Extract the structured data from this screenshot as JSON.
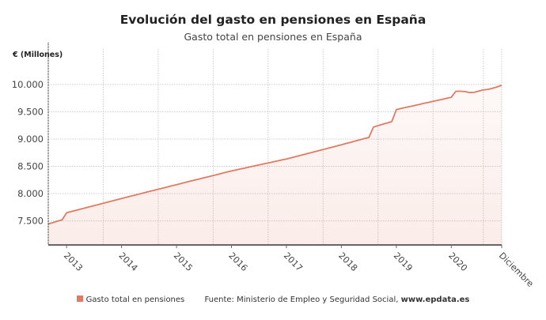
{
  "title": "Evolución del gasto en pensiones en España",
  "subtitle": "Gasto total en pensiones en España",
  "legend": {
    "label": "Gasto total en pensiones",
    "color": "#e07a62"
  },
  "source": {
    "prefix": "Fuente: Ministerio de Empleo y Seguridad Social, ",
    "link": "www.epdata.es"
  },
  "chart_data": {
    "type": "area",
    "title": "Evolución del gasto en pensiones en España",
    "subtitle": "Gasto total en pensiones en España",
    "ylabel": "€ (Millones)",
    "xlabel": "",
    "ylim": [
      7060,
      10360
    ],
    "yticks": [
      7500,
      8000,
      8500,
      9000,
      9500,
      10000
    ],
    "ytick_labels": [
      "7.500",
      "8.000",
      "8.500",
      "9.000",
      "9.500",
      "10.000"
    ],
    "xticks": [
      "2013-01",
      "2014-01",
      "2015-01",
      "2016-01",
      "2017-01",
      "2018-01",
      "2019-01",
      "2020-01",
      "2020-12"
    ],
    "xtick_labels": [
      "2013",
      "2014",
      "2015",
      "2016",
      "2017",
      "2018",
      "2019",
      "2020",
      "Diciembre"
    ],
    "grid": true,
    "legend_position": "bottom",
    "series": [
      {
        "name": "Gasto total en pensiones",
        "color": "#e07a62",
        "x": [
          "2012-09",
          "2012-10",
          "2012-11",
          "2012-12",
          "2013-01",
          "2013-02",
          "2013-03",
          "2013-04",
          "2013-05",
          "2013-06",
          "2013-07",
          "2013-08",
          "2013-09",
          "2013-10",
          "2013-11",
          "2013-12",
          "2014-01",
          "2014-02",
          "2014-03",
          "2014-04",
          "2014-05",
          "2014-06",
          "2014-07",
          "2014-08",
          "2014-09",
          "2014-10",
          "2014-11",
          "2014-12",
          "2015-01",
          "2015-02",
          "2015-03",
          "2015-04",
          "2015-05",
          "2015-06",
          "2015-07",
          "2015-08",
          "2015-09",
          "2015-10",
          "2015-11",
          "2015-12",
          "2016-01",
          "2016-02",
          "2016-03",
          "2016-04",
          "2016-05",
          "2016-06",
          "2016-07",
          "2016-08",
          "2016-09",
          "2016-10",
          "2016-11",
          "2016-12",
          "2017-01",
          "2017-02",
          "2017-03",
          "2017-04",
          "2017-05",
          "2017-06",
          "2017-07",
          "2017-08",
          "2017-09",
          "2017-10",
          "2017-11",
          "2017-12",
          "2018-01",
          "2018-02",
          "2018-03",
          "2018-04",
          "2018-05",
          "2018-06",
          "2018-07",
          "2018-08",
          "2018-09",
          "2018-10",
          "2018-11",
          "2018-12",
          "2019-01",
          "2019-02",
          "2019-03",
          "2019-04",
          "2019-05",
          "2019-06",
          "2019-07",
          "2019-08",
          "2019-09",
          "2019-10",
          "2019-11",
          "2019-12",
          "2020-01",
          "2020-02",
          "2020-03",
          "2020-04",
          "2020-05",
          "2020-06",
          "2020-07",
          "2020-08",
          "2020-09",
          "2020-10",
          "2020-11",
          "2020-12"
        ],
        "values": [
          7445,
          7470,
          7495,
          7520,
          7650,
          7672,
          7693,
          7715,
          7737,
          7758,
          7780,
          7802,
          7823,
          7845,
          7867,
          7888,
          7910,
          7931,
          7953,
          7974,
          7995,
          8016,
          8038,
          8059,
          8080,
          8101,
          8123,
          8144,
          8165,
          8186,
          8207,
          8228,
          8248,
          8269,
          8290,
          8311,
          8332,
          8353,
          8373,
          8394,
          8415,
          8433,
          8452,
          8470,
          8488,
          8507,
          8525,
          8543,
          8562,
          8580,
          8598,
          8617,
          8635,
          8657,
          8678,
          8700,
          8722,
          8743,
          8765,
          8787,
          8808,
          8830,
          8852,
          8873,
          8895,
          8918,
          8940,
          8963,
          8985,
          9008,
          9030,
          9220,
          9245,
          9270,
          9295,
          9320,
          9540,
          9559,
          9578,
          9596,
          9615,
          9634,
          9653,
          9671,
          9690,
          9709,
          9728,
          9746,
          9765,
          9875,
          9875,
          9870,
          9850,
          9855,
          9880,
          9900,
          9910,
          9930,
          9955,
          9985
        ]
      }
    ]
  }
}
